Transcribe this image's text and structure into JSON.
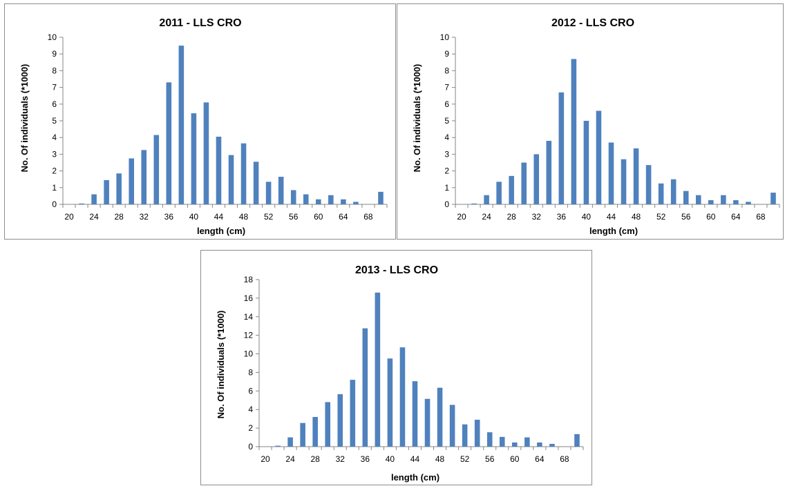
{
  "chart_data": [
    {
      "type": "bar",
      "title": "2011 - LLS CRO",
      "xlabel": "length (cm)",
      "ylabel": "No. Of individuals (*1000)",
      "x": [
        20,
        22,
        24,
        26,
        28,
        30,
        32,
        34,
        36,
        38,
        40,
        42,
        44,
        46,
        48,
        50,
        52,
        54,
        56,
        58,
        60,
        62,
        64,
        66,
        68,
        70
      ],
      "values": [
        0,
        0.05,
        0.6,
        1.45,
        1.85,
        2.75,
        3.25,
        4.15,
        7.3,
        9.5,
        5.45,
        6.1,
        4.05,
        2.95,
        3.65,
        2.55,
        1.35,
        1.65,
        0.85,
        0.6,
        0.3,
        0.55,
        0.3,
        0.15,
        0,
        0.75
      ],
      "xticks": [
        "20",
        "24",
        "28",
        "32",
        "36",
        "40",
        "44",
        "48",
        "52",
        "56",
        "60",
        "64",
        "68"
      ],
      "xtick_values": [
        20,
        24,
        28,
        32,
        36,
        40,
        44,
        48,
        52,
        56,
        60,
        64,
        68
      ],
      "yticks": [
        "0",
        "1",
        "2",
        "3",
        "4",
        "5",
        "6",
        "7",
        "8",
        "9",
        "10"
      ],
      "ylim": [
        0,
        10
      ],
      "xlim": [
        20,
        70
      ],
      "grid": false,
      "color": "#4f81bd"
    },
    {
      "type": "bar",
      "title": "2012 - LLS CRO",
      "xlabel": "length (cm)",
      "ylabel": "No. Of individuals (*1000)",
      "x": [
        20,
        22,
        24,
        26,
        28,
        30,
        32,
        34,
        36,
        38,
        40,
        42,
        44,
        46,
        48,
        50,
        52,
        54,
        56,
        58,
        60,
        62,
        64,
        66,
        68,
        70
      ],
      "values": [
        0,
        0.05,
        0.55,
        1.35,
        1.7,
        2.5,
        3.0,
        3.8,
        6.7,
        8.7,
        5.0,
        5.6,
        3.7,
        2.7,
        3.35,
        2.35,
        1.25,
        1.5,
        0.8,
        0.55,
        0.25,
        0.55,
        0.25,
        0.15,
        0,
        0.7
      ],
      "xticks": [
        "20",
        "24",
        "28",
        "32",
        "36",
        "40",
        "44",
        "48",
        "52",
        "56",
        "60",
        "64",
        "68"
      ],
      "xtick_values": [
        20,
        24,
        28,
        32,
        36,
        40,
        44,
        48,
        52,
        56,
        60,
        64,
        68
      ],
      "yticks": [
        "0",
        "1",
        "2",
        "3",
        "4",
        "5",
        "6",
        "7",
        "8",
        "9",
        "10"
      ],
      "ylim": [
        0,
        10
      ],
      "xlim": [
        20,
        70
      ],
      "grid": false,
      "color": "#4f81bd"
    },
    {
      "type": "bar",
      "title": "2013 - LLS CRO",
      "xlabel": "length (cm)",
      "ylabel": "No. Of individuals (*1000)",
      "x": [
        20,
        22,
        24,
        26,
        28,
        30,
        32,
        34,
        36,
        38,
        40,
        42,
        44,
        46,
        48,
        50,
        52,
        54,
        56,
        58,
        60,
        62,
        64,
        66,
        68,
        70
      ],
      "values": [
        0,
        0.1,
        1.0,
        2.55,
        3.2,
        4.8,
        5.65,
        7.2,
        12.75,
        16.6,
        9.5,
        10.7,
        7.05,
        5.15,
        6.35,
        4.5,
        2.4,
        2.9,
        1.55,
        1.05,
        0.45,
        1.0,
        0.45,
        0.3,
        0,
        1.35
      ],
      "xticks": [
        "20",
        "24",
        "28",
        "32",
        "36",
        "40",
        "44",
        "48",
        "52",
        "56",
        "60",
        "64",
        "68"
      ],
      "xtick_values": [
        20,
        24,
        28,
        32,
        36,
        40,
        44,
        48,
        52,
        56,
        60,
        64,
        68
      ],
      "yticks": [
        "0",
        "2",
        "4",
        "6",
        "8",
        "10",
        "12",
        "14",
        "16",
        "18"
      ],
      "ylim": [
        0,
        18
      ],
      "xlim": [
        20,
        70
      ],
      "grid": false,
      "color": "#4f81bd"
    }
  ]
}
